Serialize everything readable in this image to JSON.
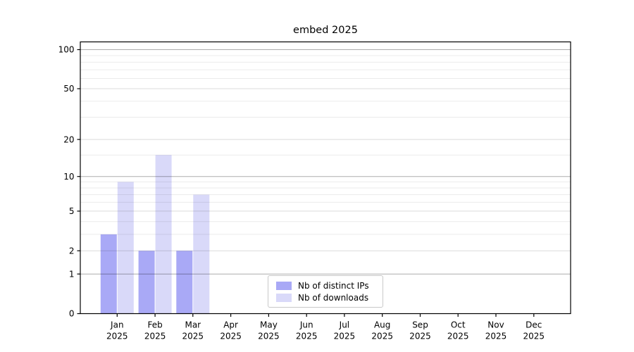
{
  "figure": {
    "title": "embed 2025",
    "year": "2025"
  },
  "legend": {
    "items": [
      {
        "label": "Nb of distinct IPs",
        "color": "#a9a9f6"
      },
      {
        "label": "Nb of downloads",
        "color": "#d9d9f9"
      }
    ]
  },
  "chart_data": {
    "type": "bar",
    "title": "embed 2025",
    "categories": [
      "Jan",
      "Feb",
      "Mar",
      "Apr",
      "May",
      "Jun",
      "Jul",
      "Aug",
      "Sep",
      "Oct",
      "Nov",
      "Dec"
    ],
    "category_year": "2025",
    "series": [
      {
        "name": "Nb of distinct IPs",
        "color": "#a9a9f6",
        "values": [
          3,
          2,
          2,
          0,
          0,
          0,
          0,
          0,
          0,
          0,
          0,
          0
        ]
      },
      {
        "name": "Nb of downloads",
        "color": "#d9d9f9",
        "values": [
          9,
          15,
          7,
          0,
          0,
          0,
          0,
          0,
          0,
          0,
          0,
          0
        ]
      }
    ],
    "xlabel": "",
    "ylabel": "",
    "y_scale": "log(1+y)",
    "y_ticks": [
      0,
      1,
      2,
      5,
      10,
      20,
      50,
      100
    ],
    "y_major_gridlines": [
      1,
      10,
      100
    ],
    "y_minor_gridlines": [
      3,
      4,
      6,
      7,
      8,
      9,
      15,
      30,
      40,
      60,
      70,
      80,
      90
    ],
    "ylim": [
      0,
      115
    ],
    "grid": "horizontal",
    "legend_position": "lower center"
  }
}
